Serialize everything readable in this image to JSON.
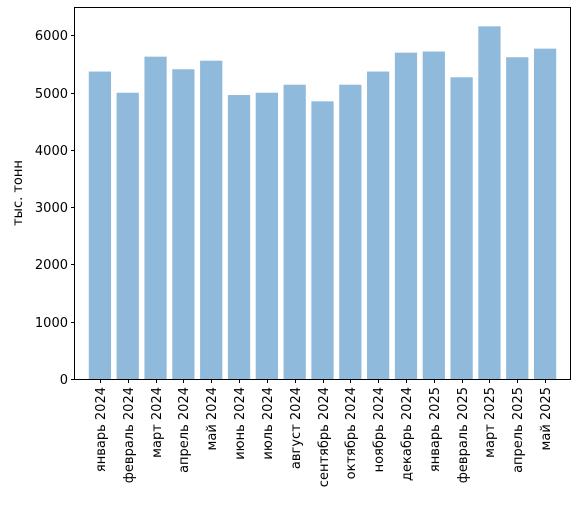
{
  "chart_data": {
    "type": "bar",
    "title": "",
    "xlabel": "",
    "ylabel": "тыс. тонн",
    "categories": [
      "январь 2024",
      "февраль 2024",
      "март 2024",
      "апрель 2024",
      "май 2024",
      "июнь 2024",
      "июль 2024",
      "август 2024",
      "сентябрь 2024",
      "октябрь 2024",
      "ноябрь 2024",
      "декабрь 2024",
      "январь 2025",
      "февраль 2025",
      "март 2025",
      "апрель 2025",
      "май 2025"
    ],
    "values": [
      5370,
      5000,
      5630,
      5410,
      5560,
      4960,
      5000,
      5140,
      4850,
      5140,
      5370,
      5700,
      5720,
      5270,
      6160,
      5620,
      5770
    ],
    "ylim": [
      0,
      6480
    ],
    "yticks": [
      0,
      1000,
      2000,
      3000,
      4000,
      5000,
      6000
    ],
    "bar_color": "#8fbadb",
    "grid": false,
    "legend": "none"
  }
}
